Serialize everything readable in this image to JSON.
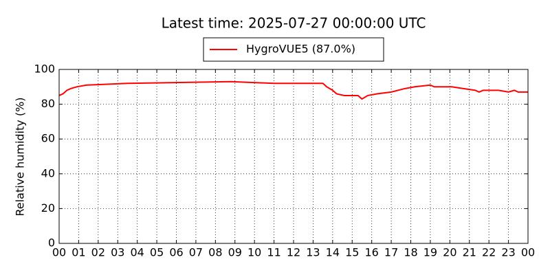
{
  "chart_data": {
    "type": "line",
    "title": "Latest time: 2025-07-27 00:00:00 UTC",
    "y_label": "Relative humidity (%)",
    "x": [
      0,
      0.2,
      0.4,
      0.6,
      0.9,
      1.4,
      3.5,
      8.8,
      11,
      13.5,
      13.7,
      14,
      14.2,
      14.6,
      15.3,
      15.5,
      15.8,
      16.3,
      17,
      17.7,
      18.2,
      19,
      19.2,
      20.1,
      20.7,
      21.3,
      21.5,
      21.7,
      22.5,
      23,
      23.3,
      23.5,
      24
    ],
    "series": [
      {
        "name": "HygroVUE5 (87.0%)",
        "color": "#ff0000",
        "values": [
          85,
          86,
          88,
          89,
          90,
          91,
          92,
          93,
          92,
          92,
          90,
          88,
          86,
          85,
          85,
          83,
          85,
          86,
          87,
          89,
          90,
          91,
          90,
          90,
          89,
          88,
          87,
          88,
          88,
          87,
          88,
          87,
          87
        ]
      }
    ],
    "xlim": [
      0,
      24
    ],
    "xticks": [
      {
        "value": 0,
        "label": "00"
      },
      {
        "value": 1,
        "label": "01"
      },
      {
        "value": 2,
        "label": "02"
      },
      {
        "value": 3,
        "label": "03"
      },
      {
        "value": 4,
        "label": "04"
      },
      {
        "value": 5,
        "label": "05"
      },
      {
        "value": 6,
        "label": "06"
      },
      {
        "value": 7,
        "label": "07"
      },
      {
        "value": 8,
        "label": "08"
      },
      {
        "value": 9,
        "label": "09"
      },
      {
        "value": 10,
        "label": "10"
      },
      {
        "value": 11,
        "label": "11"
      },
      {
        "value": 12,
        "label": "12"
      },
      {
        "value": 13,
        "label": "13"
      },
      {
        "value": 14,
        "label": "14"
      },
      {
        "value": 15,
        "label": "15"
      },
      {
        "value": 16,
        "label": "16"
      },
      {
        "value": 17,
        "label": "17"
      },
      {
        "value": 18,
        "label": "18"
      },
      {
        "value": 19,
        "label": "19"
      },
      {
        "value": 20,
        "label": "20"
      },
      {
        "value": 21,
        "label": "21"
      },
      {
        "value": 22,
        "label": "22"
      },
      {
        "value": 23,
        "label": "23"
      },
      {
        "value": 24,
        "label": "00"
      }
    ],
    "ylim": [
      0,
      100
    ],
    "yticks": [
      0,
      20,
      40,
      60,
      80,
      100
    ],
    "grid": true,
    "legend": "top"
  }
}
